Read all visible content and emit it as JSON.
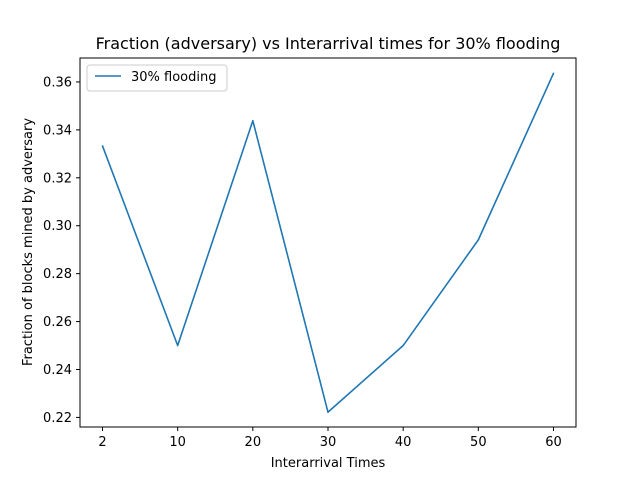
{
  "chart_data": {
    "type": "line",
    "title": "Fraction (adversary) vs Interarrival times for 30% flooding",
    "xlabel": "Interarrival Times",
    "ylabel": "Fraction of blocks mined by adversary",
    "x": [
      2,
      10,
      20,
      30,
      40,
      50,
      60
    ],
    "x_tick_labels": [
      "2",
      "10",
      "20",
      "30",
      "40",
      "50",
      "60"
    ],
    "y_ticks": [
      0.22,
      0.24,
      0.26,
      0.28,
      0.3,
      0.32,
      0.34,
      0.36
    ],
    "y_tick_labels": [
      "0.22",
      "0.24",
      "0.26",
      "0.28",
      "0.30",
      "0.32",
      "0.34",
      "0.36"
    ],
    "ylim": [
      0.216,
      0.37
    ],
    "series": [
      {
        "name": "30% flooding",
        "color": "#1f77b4",
        "values": [
          0.3333,
          0.25,
          0.3438,
          0.2222,
          0.25,
          0.2941,
          0.3636
        ]
      }
    ],
    "legend_position": "upper-left",
    "grid": false
  }
}
